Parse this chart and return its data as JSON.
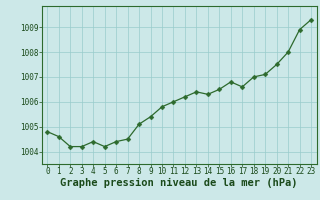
{
  "x": [
    0,
    1,
    2,
    3,
    4,
    5,
    6,
    7,
    8,
    9,
    10,
    11,
    12,
    13,
    14,
    15,
    16,
    17,
    18,
    19,
    20,
    21,
    22,
    23
  ],
  "y": [
    1004.8,
    1004.6,
    1004.2,
    1004.2,
    1004.4,
    1004.2,
    1004.4,
    1004.5,
    1005.1,
    1005.4,
    1005.8,
    1006.0,
    1006.2,
    1006.4,
    1006.3,
    1006.5,
    1006.8,
    1006.6,
    1007.0,
    1007.1,
    1007.5,
    1008.0,
    1008.9,
    1009.3
  ],
  "line_color": "#2d6a2d",
  "marker": "D",
  "marker_size": 2.5,
  "bg_color": "#cce8e8",
  "grid_color": "#99cccc",
  "xlabel": "Graphe pression niveau de la mer (hPa)",
  "xlabel_fontsize": 7.5,
  "xlabel_color": "#1a4a1a",
  "ylim": [
    1003.5,
    1009.85
  ],
  "yticks": [
    1004,
    1005,
    1006,
    1007,
    1008,
    1009
  ],
  "xticks": [
    0,
    1,
    2,
    3,
    4,
    5,
    6,
    7,
    8,
    9,
    10,
    11,
    12,
    13,
    14,
    15,
    16,
    17,
    18,
    19,
    20,
    21,
    22,
    23
  ],
  "tick_fontsize": 5.5,
  "tick_color": "#1a4a1a",
  "spine_color": "#2d6a2d"
}
